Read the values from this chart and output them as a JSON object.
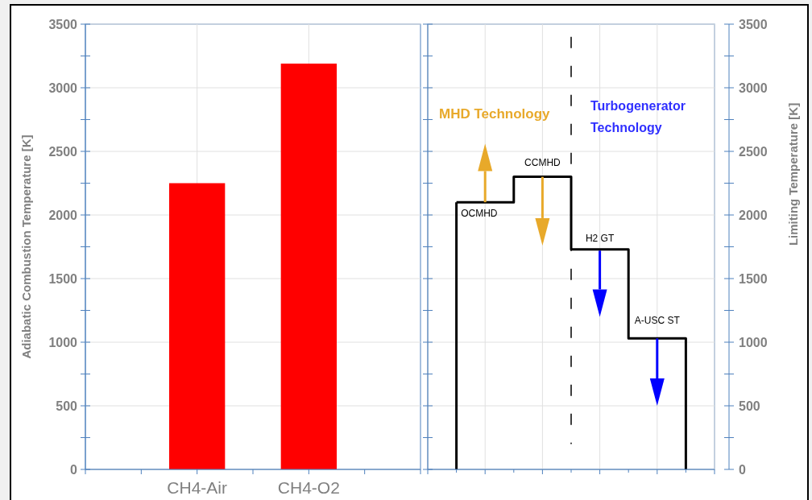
{
  "chart_data": [
    {
      "type": "bar",
      "categories": [
        "CH4-Air",
        "CH4-O2"
      ],
      "values": [
        2250,
        3190
      ],
      "color": "#ff0000",
      "ylabel": "Adiabatic Combustion Temperature [K]",
      "ylim": [
        0,
        3500
      ],
      "yticks": [
        0,
        {
          "value": 250,
          "label": null
        },
        500,
        {
          "value": 750,
          "label": null
        },
        1000,
        {
          "value": 1250,
          "label": null
        },
        1500,
        {
          "value": 1750,
          "label": null
        },
        2000,
        {
          "value": 2250,
          "label": null
        },
        2500,
        {
          "value": 2750,
          "label": null
        },
        3000,
        {
          "value": 3250,
          "label": null
        },
        3500
      ],
      "grid": true
    },
    {
      "type": "step",
      "categories": [
        null,
        null,
        null,
        null,
        null
      ],
      "series": [
        {
          "color": "#000000",
          "values": [
            2100,
            2300,
            1730,
            1030,
            0
          ]
        }
      ],
      "ylabel": "Limiting Temperature [K]",
      "ylim": [
        0,
        3500
      ],
      "yticks": [
        0,
        {
          "value": 250,
          "label": null
        },
        500,
        {
          "value": 750,
          "label": null
        },
        1000,
        {
          "value": 1250,
          "label": null
        },
        1500,
        {
          "value": 1750,
          "label": null
        },
        2000,
        {
          "value": 2250,
          "label": null
        },
        2500,
        {
          "value": 2750,
          "label": null
        },
        3000,
        {
          "value": 3250,
          "label": null
        },
        3500
      ],
      "grid": true,
      "ref_lines": [
        {
          "axis": "x",
          "color": "#000000",
          "line_style": "dashed"
        }
      ],
      "annotations": [
        "MHD Technology",
        "Turbogenerator Technology",
        {
          "text": "OCMHD",
          "y": 2100
        },
        {
          "text": "CCMHD",
          "y": 2300
        },
        {
          "text": "H2 GT",
          "y": 1730
        },
        {
          "text": "A-USC ST",
          "y": 1030
        }
      ]
    }
  ]
}
